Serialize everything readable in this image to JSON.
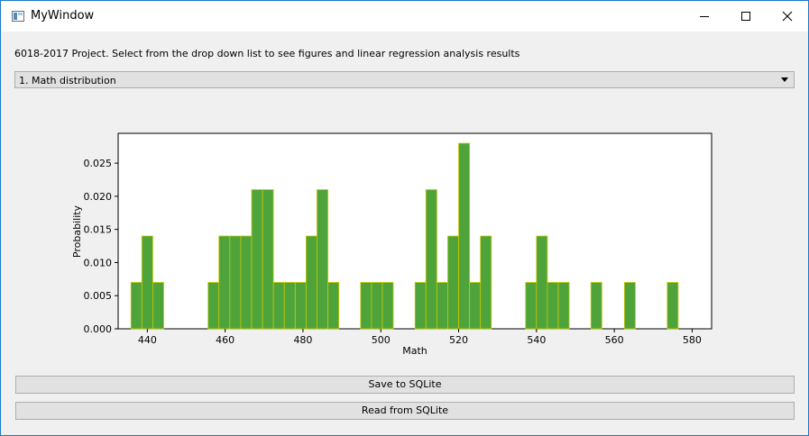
{
  "window": {
    "title": "MyWindow"
  },
  "description": "6018-2017 Project. Select from the drop down list to see figures and linear regression analysis results",
  "dropdown": {
    "selected": "1. Math distribution"
  },
  "buttons": {
    "save": "Save to SQLite",
    "read": "Read from SQLite"
  },
  "icons": {
    "minimize": "minimize-icon",
    "maximize": "maximize-icon",
    "close": "close-icon",
    "dropdown": "chevron-down-icon",
    "app": "app-window-icon"
  },
  "colors": {
    "bar_fill": "#4ea43b",
    "bar_edge": "#c8c800"
  },
  "chart_data": {
    "type": "bar",
    "title": "",
    "xlabel": "Math",
    "ylabel": "Probability",
    "xlim": [
      432.5,
      585
    ],
    "ylim": [
      0,
      0.0295
    ],
    "xticks": [
      440,
      460,
      480,
      500,
      520,
      540,
      560,
      580
    ],
    "yticks": [
      0,
      0.005,
      0.01,
      0.015,
      0.02,
      0.025
    ],
    "ytick_labels": [
      "0.000",
      "0.005",
      "0.010",
      "0.015",
      "0.020",
      "0.025"
    ],
    "bin_width": 2.8,
    "bins": [
      {
        "x": 437.2,
        "y": 0.007
      },
      {
        "x": 440.0,
        "y": 0.014
      },
      {
        "x": 442.8,
        "y": 0.007
      },
      {
        "x": 457.0,
        "y": 0.007
      },
      {
        "x": 459.8,
        "y": 0.014
      },
      {
        "x": 462.6,
        "y": 0.014
      },
      {
        "x": 465.4,
        "y": 0.014
      },
      {
        "x": 468.2,
        "y": 0.021
      },
      {
        "x": 471.0,
        "y": 0.021
      },
      {
        "x": 473.8,
        "y": 0.007
      },
      {
        "x": 476.6,
        "y": 0.007
      },
      {
        "x": 479.4,
        "y": 0.007
      },
      {
        "x": 482.2,
        "y": 0.014
      },
      {
        "x": 485.0,
        "y": 0.021
      },
      {
        "x": 487.8,
        "y": 0.007
      },
      {
        "x": 496.2,
        "y": 0.007
      },
      {
        "x": 499.0,
        "y": 0.007
      },
      {
        "x": 501.8,
        "y": 0.007
      },
      {
        "x": 510.2,
        "y": 0.007
      },
      {
        "x": 513.0,
        "y": 0.021
      },
      {
        "x": 515.8,
        "y": 0.007
      },
      {
        "x": 518.6,
        "y": 0.014
      },
      {
        "x": 521.4,
        "y": 0.028
      },
      {
        "x": 524.2,
        "y": 0.007
      },
      {
        "x": 527.0,
        "y": 0.014
      },
      {
        "x": 538.6,
        "y": 0.007
      },
      {
        "x": 541.4,
        "y": 0.014
      },
      {
        "x": 544.2,
        "y": 0.007
      },
      {
        "x": 547.0,
        "y": 0.007
      },
      {
        "x": 555.4,
        "y": 0.007
      },
      {
        "x": 564.0,
        "y": 0.007
      },
      {
        "x": 575.0,
        "y": 0.007
      }
    ]
  }
}
